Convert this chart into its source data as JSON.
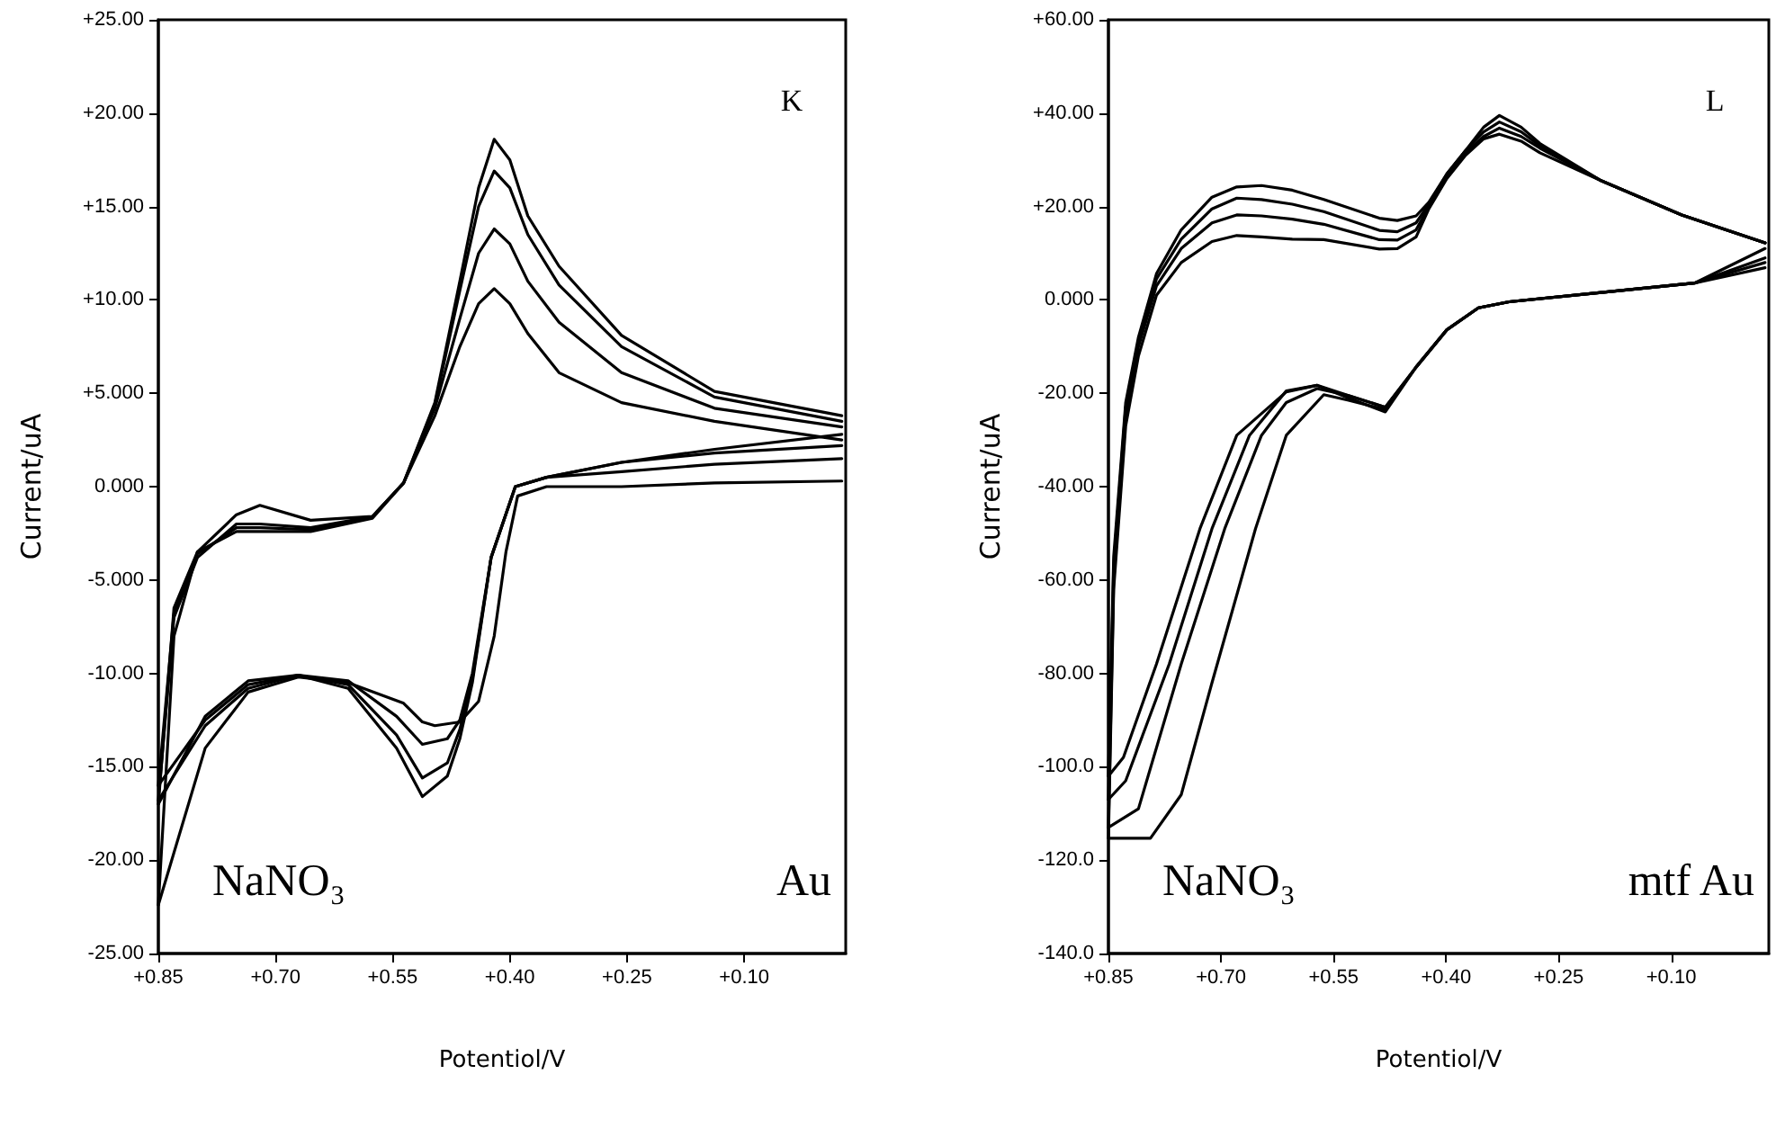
{
  "chart_data": [
    {
      "type": "line",
      "xlabel": "Potentiol/V",
      "ylabel": "Current/uA",
      "annotations": [
        "K",
        "NaNO₃",
        "Au"
      ],
      "marker": "none",
      "line_style": "solid",
      "xlim": [
        0.85,
        -0.03
      ],
      "xticks": [
        {
          "value": 0.85,
          "label": "+0.85"
        },
        {
          "value": 0.7,
          "label": "+0.70"
        },
        {
          "value": 0.55,
          "label": "+0.55"
        },
        {
          "value": 0.4,
          "label": "+0.40"
        },
        {
          "value": 0.25,
          "label": "+0.25"
        },
        {
          "value": 0.1,
          "label": "+0.10"
        }
      ],
      "ylim": [
        -25,
        25
      ],
      "yticks": [
        {
          "value": 25,
          "label": "+25.00"
        },
        {
          "value": 20,
          "label": "+20.00"
        },
        {
          "value": 15,
          "label": "+15.00"
        },
        {
          "value": 10,
          "label": "+10.00"
        },
        {
          "value": 5,
          "label": "+5.000"
        },
        {
          "value": 0,
          "label": "0.000"
        },
        {
          "value": -5,
          "label": "-5.000"
        },
        {
          "value": -10,
          "label": "-10.00"
        },
        {
          "value": -15,
          "label": "-15.00"
        },
        {
          "value": -20,
          "label": "-20.00"
        },
        {
          "value": -25,
          "label": "-25.00"
        }
      ],
      "series": [
        {
          "color": "#000000",
          "x": [
            0.85,
            0.83,
            0.8,
            0.75,
            0.72,
            0.655,
            0.576,
            0.536,
            0.496,
            0.464,
            0.44,
            0.42,
            0.4,
            0.377,
            0.337,
            0.257,
            0.138,
            -0.025
          ],
          "values": [
            -16.8,
            -7,
            -3.8,
            -2,
            -2,
            -2.2,
            -1.6,
            0.2,
            4.5,
            11,
            16,
            18.6,
            17.5,
            14.5,
            11.8,
            8.1,
            5.1,
            3.8
          ]
        },
        {
          "color": "#000000",
          "x": [
            0.85,
            0.83,
            0.8,
            0.75,
            0.72,
            0.655,
            0.576,
            0.536,
            0.496,
            0.464,
            0.44,
            0.42,
            0.4,
            0.377,
            0.337,
            0.257,
            0.138,
            -0.025
          ],
          "values": [
            -16,
            -6.8,
            -3.6,
            -2.2,
            -2.2,
            -2.3,
            -1.6,
            0.2,
            4.4,
            10.5,
            15,
            16.9,
            16,
            13.5,
            10.8,
            7.5,
            4.8,
            3.5
          ]
        },
        {
          "color": "#000000",
          "x": [
            0.85,
            0.83,
            0.8,
            0.75,
            0.72,
            0.655,
            0.576,
            0.536,
            0.496,
            0.464,
            0.44,
            0.42,
            0.4,
            0.377,
            0.337,
            0.257,
            0.138,
            -0.025
          ],
          "values": [
            -17,
            -6.5,
            -3.5,
            -2.4,
            -2.4,
            -2.4,
            -1.7,
            0.2,
            4.2,
            9,
            12.5,
            13.8,
            13,
            11,
            8.8,
            6.1,
            4.2,
            3.2
          ]
        },
        {
          "color": "#000000",
          "x": [
            0.85,
            0.83,
            0.8,
            0.75,
            0.72,
            0.655,
            0.576,
            0.536,
            0.496,
            0.464,
            0.44,
            0.42,
            0.4,
            0.377,
            0.337,
            0.257,
            0.138,
            -0.025
          ],
          "values": [
            -22.4,
            -8,
            -3.5,
            -1.5,
            -1,
            -1.8,
            -1.6,
            0.2,
            3.8,
            7.5,
            9.8,
            10.6,
            9.8,
            8.2,
            6.1,
            4.5,
            3.5,
            2.5
          ]
        },
        {
          "color": "#000000",
          "x": [
            0.85,
            0.79,
            0.735,
            0.671,
            0.607,
            0.545,
            0.512,
            0.48,
            0.464,
            0.448,
            0.424,
            0.393,
            0.353,
            0.257,
            0.138,
            -0.025
          ],
          "values": [
            -16.8,
            -12.8,
            -10.8,
            -10.1,
            -10.8,
            -14,
            -16.6,
            -15.5,
            -13.5,
            -10.5,
            -3.8,
            0,
            0.5,
            1.3,
            2,
            2.8
          ]
        },
        {
          "color": "#000000",
          "x": [
            0.85,
            0.79,
            0.735,
            0.671,
            0.607,
            0.545,
            0.512,
            0.48,
            0.464,
            0.448,
            0.424,
            0.393,
            0.353,
            0.257,
            0.138,
            -0.025
          ],
          "values": [
            -16,
            -12.5,
            -10.6,
            -10.1,
            -10.6,
            -13.3,
            -15.6,
            -14.8,
            -13,
            -10.3,
            -3.8,
            0,
            0.5,
            1.3,
            1.8,
            2.2
          ]
        },
        {
          "color": "#000000",
          "x": [
            0.85,
            0.79,
            0.735,
            0.671,
            0.607,
            0.545,
            0.512,
            0.48,
            0.464,
            0.448,
            0.424,
            0.393,
            0.353,
            0.257,
            0.138,
            -0.025
          ],
          "values": [
            -17,
            -12.3,
            -10.4,
            -10.1,
            -10.4,
            -12.3,
            -13.8,
            -13.5,
            -12.5,
            -10,
            -3.8,
            0,
            0.5,
            0.8,
            1.2,
            1.5
          ]
        },
        {
          "color": "#000000",
          "x": [
            0.85,
            0.79,
            0.735,
            0.671,
            0.607,
            0.536,
            0.512,
            0.496,
            0.464,
            0.44,
            0.42,
            0.405,
            0.39,
            0.353,
            0.257,
            0.138,
            -0.025
          ],
          "values": [
            -22.4,
            -14,
            -11,
            -10.2,
            -10.5,
            -11.6,
            -12.6,
            -12.8,
            -12.6,
            -11.5,
            -8,
            -3.5,
            -0.5,
            0,
            0,
            0.2,
            0.3
          ]
        }
      ]
    },
    {
      "type": "line",
      "xlabel": "Potentiol/V",
      "ylabel": "Current/uA",
      "annotations": [
        "L",
        "NaNO₃",
        "mtf Au"
      ],
      "marker": "none",
      "line_style": "solid",
      "xlim": [
        0.85,
        -0.03
      ],
      "xticks": [
        {
          "value": 0.85,
          "label": "+0.85"
        },
        {
          "value": 0.7,
          "label": "+0.70"
        },
        {
          "value": 0.55,
          "label": "+0.55"
        },
        {
          "value": 0.4,
          "label": "+0.40"
        },
        {
          "value": 0.25,
          "label": "+0.25"
        },
        {
          "value": 0.1,
          "label": "+0.10"
        }
      ],
      "ylim": [
        -140,
        60
      ],
      "yticks": [
        {
          "value": 60,
          "label": "+60.00"
        },
        {
          "value": 40,
          "label": "+40.00"
        },
        {
          "value": 20,
          "label": "+20.00"
        },
        {
          "value": 0,
          "label": "0.000"
        },
        {
          "value": -20,
          "label": "-20.00"
        },
        {
          "value": -40,
          "label": "-40.00"
        },
        {
          "value": -60,
          "label": "-60.00"
        },
        {
          "value": -80,
          "label": "-80.00"
        },
        {
          "value": -100,
          "label": "-100.0"
        },
        {
          "value": -120,
          "label": "-120.0"
        },
        {
          "value": -140,
          "label": "-140.0"
        }
      ],
      "series": [
        {
          "color": "#000000",
          "x": [
            0.85,
            0.843,
            0.827,
            0.81,
            0.786,
            0.753,
            0.712,
            0.679,
            0.646,
            0.605,
            0.563,
            0.489,
            0.465,
            0.44,
            0.423,
            0.399,
            0.374,
            0.35,
            0.329,
            0.3,
            0.275,
            0.193,
            0.086,
            -0.025
          ],
          "values": [
            -102,
            -55,
            -22,
            -8,
            5.6,
            15,
            22,
            24.2,
            24.5,
            23.5,
            21.5,
            17.5,
            17,
            18,
            20.9,
            27,
            32,
            37,
            39.5,
            37,
            33.5,
            25.5,
            18.2,
            12.2
          ]
        },
        {
          "color": "#000000",
          "x": [
            0.85,
            0.843,
            0.827,
            0.81,
            0.786,
            0.753,
            0.712,
            0.679,
            0.646,
            0.605,
            0.563,
            0.489,
            0.465,
            0.44,
            0.423,
            0.399,
            0.374,
            0.35,
            0.329,
            0.3,
            0.275,
            0.193,
            0.086,
            -0.025
          ],
          "values": [
            -107,
            -57,
            -23,
            -9,
            4.5,
            13,
            19.5,
            21.8,
            21.5,
            20.5,
            18.9,
            14.9,
            14.6,
            16.5,
            20.5,
            27,
            32,
            36,
            38.1,
            36,
            33,
            25.5,
            18.2,
            12.2
          ]
        },
        {
          "color": "#000000",
          "x": [
            0.85,
            0.843,
            0.827,
            0.81,
            0.786,
            0.753,
            0.712,
            0.679,
            0.646,
            0.605,
            0.563,
            0.489,
            0.465,
            0.44,
            0.423,
            0.399,
            0.374,
            0.35,
            0.329,
            0.3,
            0.275,
            0.193,
            0.086,
            -0.025
          ],
          "values": [
            -113,
            -60,
            -25,
            -10,
            3,
            11,
            16.5,
            18.2,
            18,
            17.3,
            16.2,
            12.9,
            12.8,
            15,
            20,
            26.5,
            31.5,
            35,
            36.8,
            35,
            32.5,
            25.5,
            18.2,
            12.2
          ]
        },
        {
          "color": "#000000",
          "x": [
            0.85,
            0.843,
            0.827,
            0.81,
            0.786,
            0.753,
            0.712,
            0.679,
            0.646,
            0.605,
            0.563,
            0.489,
            0.465,
            0.44,
            0.423,
            0.399,
            0.374,
            0.35,
            0.329,
            0.3,
            0.275,
            0.193,
            0.086,
            -0.025
          ],
          "values": [
            -115.3,
            -62,
            -27,
            -12,
            1,
            8,
            12.5,
            13.8,
            13.5,
            13,
            12.9,
            10.9,
            11,
            13.5,
            19.5,
            26,
            31,
            34.5,
            35.5,
            34,
            31.5,
            25.5,
            18.2,
            12.2
          ]
        },
        {
          "color": "#000000",
          "x": [
            0.85,
            0.83,
            0.786,
            0.728,
            0.679,
            0.613,
            0.572,
            0.53,
            0.481,
            0.44,
            0.399,
            0.357,
            0.316,
            0.193,
            0.069,
            -0.025
          ],
          "values": [
            -102,
            -98,
            -78,
            -49,
            -29,
            -19.7,
            -18.3,
            -21,
            -24,
            -14.4,
            -6.4,
            -1.7,
            -0.4,
            1.6,
            3.6,
            11
          ]
        },
        {
          "color": "#000000",
          "x": [
            0.85,
            0.827,
            0.769,
            0.712,
            0.662,
            0.613,
            0.572,
            0.53,
            0.481,
            0.44,
            0.399,
            0.357,
            0.316,
            0.193,
            0.069,
            -0.025
          ],
          "values": [
            -107,
            -103,
            -78,
            -49,
            -29,
            -19.5,
            -18.3,
            -20.5,
            -23,
            -14.4,
            -6.4,
            -1.7,
            -0.4,
            1.6,
            3.6,
            9
          ]
        },
        {
          "color": "#000000",
          "x": [
            0.85,
            0.81,
            0.753,
            0.695,
            0.646,
            0.613,
            0.572,
            0.53,
            0.481,
            0.44,
            0.399,
            0.357,
            0.316,
            0.193,
            0.069,
            -0.025
          ],
          "values": [
            -113,
            -109,
            -78,
            -49,
            -29,
            -22,
            -19,
            -20.5,
            -23,
            -14.4,
            -6.4,
            -1.7,
            -0.4,
            1.6,
            3.6,
            8
          ]
        },
        {
          "color": "#000000",
          "x": [
            0.85,
            0.794,
            0.753,
            0.712,
            0.654,
            0.613,
            0.563,
            0.53,
            0.481,
            0.44,
            0.399,
            0.357,
            0.316,
            0.193,
            0.069,
            -0.025
          ],
          "values": [
            -115.3,
            -115.3,
            -106,
            -82,
            -49,
            -29,
            -20.3,
            -21.5,
            -23.5,
            -14.4,
            -6.4,
            -1.7,
            -0.4,
            1.6,
            3.6,
            6.9
          ]
        }
      ]
    }
  ]
}
